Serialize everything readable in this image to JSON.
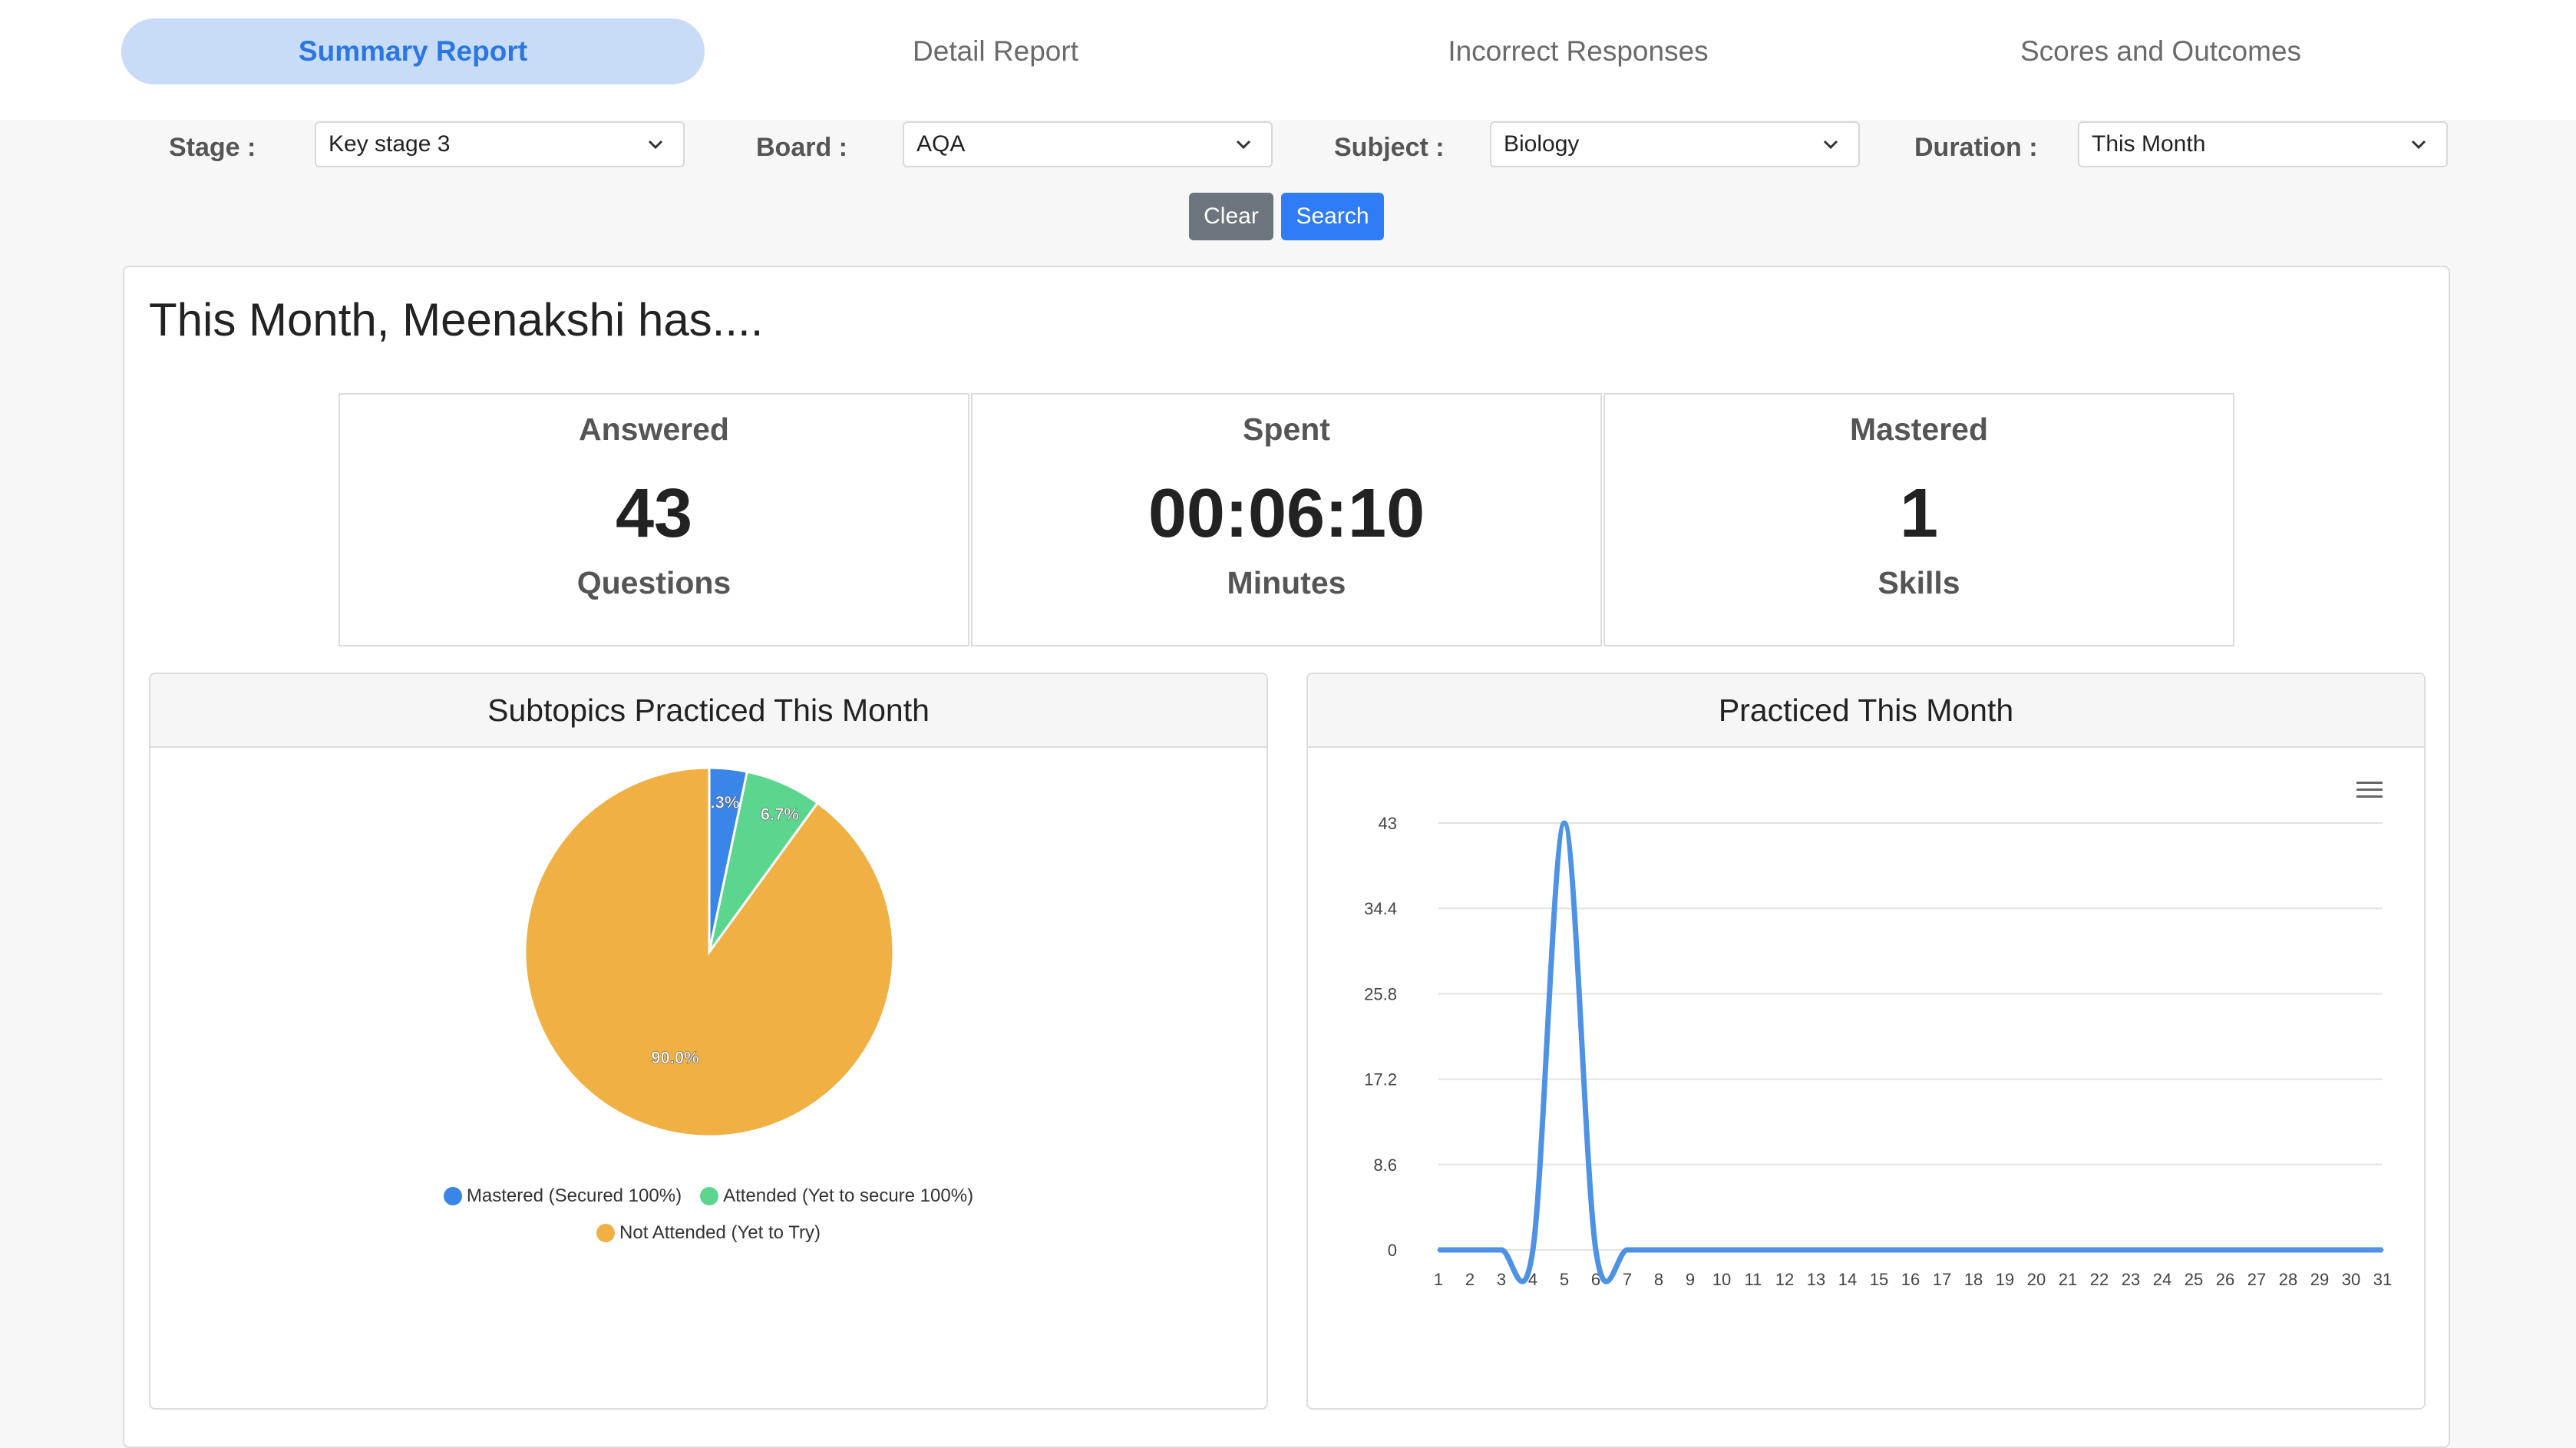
{
  "tabs": [
    {
      "label": "Summary Report",
      "active": true
    },
    {
      "label": "Detail Report",
      "active": false
    },
    {
      "label": "Incorrect Responses",
      "active": false
    },
    {
      "label": "Scores and Outcomes",
      "active": false
    }
  ],
  "filters": {
    "stage": {
      "label": "Stage :",
      "value": "Key stage 3"
    },
    "board": {
      "label": "Board :",
      "value": "AQA"
    },
    "subject": {
      "label": "Subject :",
      "value": "Biology"
    },
    "duration": {
      "label": "Duration :",
      "value": "This Month"
    }
  },
  "buttons": {
    "clear": "Clear",
    "search": "Search"
  },
  "greeting": "This Month, Meenakshi has....",
  "stats": [
    {
      "title": "Answered",
      "value": "43",
      "unit": "Questions"
    },
    {
      "title": "Spent",
      "value": "00:06:10",
      "unit": "Minutes"
    },
    {
      "title": "Mastered",
      "value": "1",
      "unit": "Skills"
    }
  ],
  "panels": {
    "pie_title": "Subtopics Practiced This Month",
    "line_title": "Practiced This Month",
    "menu_icon": "hamburger-menu-icon"
  },
  "colors": {
    "mastered": "#3a86e8",
    "attended": "#5cd68f",
    "not_attended": "#f0b043",
    "line": "#4e92e6",
    "active_tab_bg": "#c8dcf8",
    "active_tab_text": "#2a77e4"
  },
  "chart_data": [
    {
      "type": "pie",
      "title": "Subtopics Practiced This Month",
      "slices": [
        {
          "name": "Mastered (Secured 100%)",
          "value": 3.3,
          "label": "3.3%"
        },
        {
          "name": "Attended (Yet to secure 100%)",
          "value": 6.7,
          "label": "6.7%"
        },
        {
          "name": "Not Attended (Yet to Try)",
          "value": 90.0,
          "label": "90.0%"
        }
      ],
      "legend_position": "bottom"
    },
    {
      "type": "line",
      "title": "Practiced This Month",
      "x": [
        1,
        2,
        3,
        4,
        5,
        6,
        7,
        8,
        9,
        10,
        11,
        12,
        13,
        14,
        15,
        16,
        17,
        18,
        19,
        20,
        21,
        22,
        23,
        24,
        25,
        26,
        27,
        28,
        29,
        30,
        31
      ],
      "series": [
        {
          "values": [
            0,
            0,
            0,
            0,
            43,
            0,
            0,
            0,
            0,
            0,
            0,
            0,
            0,
            0,
            0,
            0,
            0,
            0,
            0,
            0,
            0,
            0,
            0,
            0,
            0,
            0,
            0,
            0,
            0,
            0,
            0
          ]
        }
      ],
      "yticks": [
        "0",
        "8.6",
        "17.2",
        "25.8",
        "34.4",
        "43"
      ],
      "ylim": [
        0,
        43
      ],
      "grid": true
    }
  ]
}
